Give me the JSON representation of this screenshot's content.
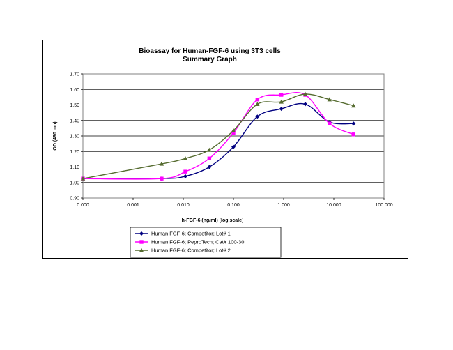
{
  "chart_data": {
    "type": "line",
    "title": "Bioassay for Human-FGF-6 using 3T3 cells",
    "subtitle": "Summary Graph",
    "xlabel": "h-FGF-6 (ng/ml) [log scale]",
    "ylabel": "OD (490 nm)",
    "x_scale": "log",
    "x_tick_labels": [
      "0.000",
      "0.001",
      "0.010",
      "0.100",
      "1.000",
      "10.000",
      "100.000"
    ],
    "x_tick_values": [
      0.0001,
      0.001,
      0.01,
      0.1,
      1,
      10,
      100
    ],
    "xlim": [
      0.0001,
      100
    ],
    "y_tick_labels": [
      "0.90",
      "1.00",
      "1.10",
      "1.20",
      "1.30",
      "1.40",
      "1.50",
      "1.60",
      "1.70"
    ],
    "y_tick_values": [
      0.9,
      1.0,
      1.1,
      1.2,
      1.3,
      1.4,
      1.5,
      1.6,
      1.7
    ],
    "ylim": [
      0.9,
      1.7
    ],
    "grid": "horizontal",
    "legend_position": "bottom",
    "series": [
      {
        "name": "Human FGF-6; Competitor; Lot# 1",
        "color": "#000080",
        "marker": "diamond",
        "x": [
          0.0001,
          0.0037,
          0.011,
          0.033,
          0.1,
          0.3,
          0.9,
          2.7,
          8.2,
          24.7
        ],
        "y": [
          1.025,
          1.025,
          1.04,
          1.1,
          1.23,
          1.425,
          1.475,
          1.505,
          1.39,
          1.38
        ]
      },
      {
        "name": "Human FGF-6; PeproTech; Cat# 100-30",
        "color": "#ff00ff",
        "marker": "square",
        "x": [
          0.0001,
          0.0037,
          0.011,
          0.033,
          0.1,
          0.3,
          0.9,
          2.7,
          8.2,
          24.7
        ],
        "y": [
          1.025,
          1.025,
          1.07,
          1.155,
          1.32,
          1.535,
          1.565,
          1.565,
          1.38,
          1.31
        ]
      },
      {
        "name": "Human FGF-6; Competitor; Lot# 2",
        "color": "#556b2f",
        "marker": "triangle",
        "x": [
          0.0001,
          0.0037,
          0.011,
          0.033,
          0.1,
          0.3,
          0.9,
          2.7,
          8.2,
          24.7
        ],
        "y": [
          1.025,
          1.12,
          1.155,
          1.21,
          1.335,
          1.505,
          1.52,
          1.57,
          1.535,
          1.495
        ]
      }
    ]
  }
}
